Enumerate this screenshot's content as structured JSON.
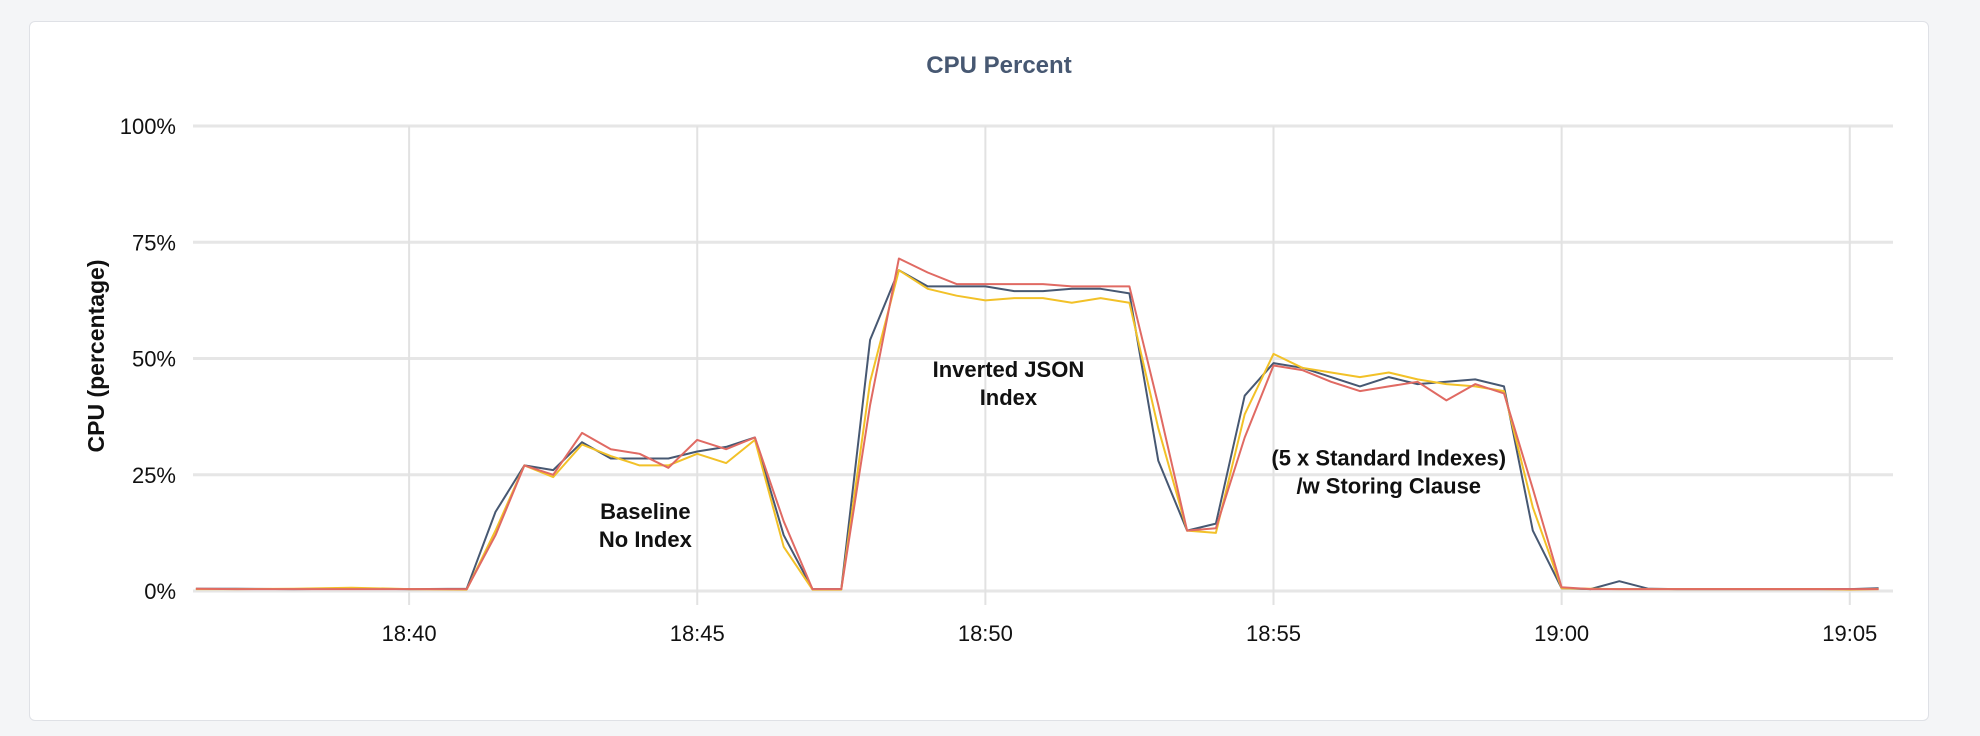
{
  "chart_data": {
    "type": "line",
    "title": "CPU Percent",
    "ylabel": "CPU (percentage)",
    "xlabel": "",
    "ylim": [
      0,
      100
    ],
    "yticks": [
      0,
      25,
      50,
      75,
      100
    ],
    "ytick_labels": [
      "0%",
      "25%",
      "50%",
      "75%",
      "100%"
    ],
    "xlim": [
      36.25,
      65.75
    ],
    "xticks": [
      40,
      45,
      50,
      55,
      60,
      65
    ],
    "xtick_labels": [
      "18:40",
      "18:45",
      "18:50",
      "18:55",
      "19:00",
      "19:05"
    ],
    "x_minutes_after": "18:00",
    "grid": true,
    "legend": "none",
    "series": [
      {
        "color": "#475872",
        "points": [
          [
            36.3,
            0.5
          ],
          [
            37.0,
            0.5
          ],
          [
            38.0,
            0.4
          ],
          [
            39.0,
            0.5
          ],
          [
            40.0,
            0.4
          ],
          [
            41.0,
            0.5
          ],
          [
            41.5,
            17
          ],
          [
            42.0,
            27
          ],
          [
            42.5,
            26
          ],
          [
            43.0,
            32
          ],
          [
            43.5,
            28.5
          ],
          [
            44.0,
            28.5
          ],
          [
            44.5,
            28.5
          ],
          [
            45.0,
            30
          ],
          [
            45.5,
            31
          ],
          [
            46.0,
            33
          ],
          [
            46.5,
            12
          ],
          [
            47.0,
            0.4
          ],
          [
            47.5,
            0.4
          ],
          [
            48.0,
            54
          ],
          [
            48.5,
            69
          ],
          [
            49.0,
            65.5
          ],
          [
            49.5,
            65.5
          ],
          [
            50.0,
            65.5
          ],
          [
            50.5,
            64.5
          ],
          [
            51.0,
            64.5
          ],
          [
            51.5,
            65
          ],
          [
            52.0,
            65
          ],
          [
            52.5,
            64
          ],
          [
            53.0,
            28
          ],
          [
            53.5,
            13
          ],
          [
            54.0,
            14.5
          ],
          [
            54.5,
            42
          ],
          [
            55.0,
            49
          ],
          [
            55.5,
            48
          ],
          [
            56.0,
            46
          ],
          [
            56.5,
            44
          ],
          [
            57.0,
            46
          ],
          [
            57.5,
            44.5
          ],
          [
            58.0,
            45
          ],
          [
            58.5,
            45.5
          ],
          [
            59.0,
            44
          ],
          [
            59.5,
            13
          ],
          [
            60.0,
            0.6
          ],
          [
            60.5,
            0.4
          ],
          [
            61.0,
            2.1
          ],
          [
            61.5,
            0.5
          ],
          [
            62.0,
            0.4
          ],
          [
            62.5,
            0.4
          ],
          [
            63.0,
            0.4
          ],
          [
            63.5,
            0.4
          ],
          [
            64.0,
            0.4
          ],
          [
            64.5,
            0.4
          ],
          [
            65.0,
            0.4
          ],
          [
            65.5,
            0.6
          ]
        ]
      },
      {
        "color": "#f2c128",
        "points": [
          [
            36.3,
            0.4
          ],
          [
            37.0,
            0.4
          ],
          [
            38.0,
            0.5
          ],
          [
            39.0,
            0.7
          ],
          [
            40.0,
            0.4
          ],
          [
            41.0,
            0.3
          ],
          [
            41.5,
            13
          ],
          [
            42.0,
            27
          ],
          [
            42.5,
            24.5
          ],
          [
            43.0,
            31.5
          ],
          [
            43.5,
            29
          ],
          [
            44.0,
            27
          ],
          [
            44.5,
            27
          ],
          [
            45.0,
            29.5
          ],
          [
            45.5,
            27.5
          ],
          [
            46.0,
            32.5
          ],
          [
            46.5,
            9.5
          ],
          [
            47.0,
            0.3
          ],
          [
            47.5,
            0.3
          ],
          [
            48.0,
            45
          ],
          [
            48.5,
            69
          ],
          [
            49.0,
            65
          ],
          [
            49.5,
            63.5
          ],
          [
            50.0,
            62.5
          ],
          [
            50.5,
            63
          ],
          [
            51.0,
            63
          ],
          [
            51.5,
            62
          ],
          [
            52.0,
            63
          ],
          [
            52.5,
            62
          ],
          [
            53.0,
            35
          ],
          [
            53.5,
            13
          ],
          [
            54.0,
            12.5
          ],
          [
            54.5,
            38
          ],
          [
            55.0,
            51
          ],
          [
            55.5,
            48
          ],
          [
            56.0,
            47
          ],
          [
            56.5,
            46
          ],
          [
            57.0,
            47
          ],
          [
            57.5,
            45.5
          ],
          [
            58.0,
            44.5
          ],
          [
            58.5,
            44
          ],
          [
            59.0,
            43
          ],
          [
            59.5,
            18
          ],
          [
            60.0,
            0.6
          ],
          [
            60.5,
            0.5
          ],
          [
            61.0,
            0.4
          ],
          [
            61.5,
            0.4
          ],
          [
            62.0,
            0.4
          ],
          [
            62.5,
            0.4
          ],
          [
            63.0,
            0.4
          ],
          [
            63.5,
            0.4
          ],
          [
            64.0,
            0.4
          ],
          [
            64.5,
            0.4
          ],
          [
            65.0,
            0.3
          ],
          [
            65.5,
            0.4
          ]
        ]
      },
      {
        "color": "#e06a63",
        "points": [
          [
            36.3,
            0.5
          ],
          [
            37.0,
            0.4
          ],
          [
            38.0,
            0.4
          ],
          [
            39.0,
            0.4
          ],
          [
            40.0,
            0.4
          ],
          [
            41.0,
            0.4
          ],
          [
            41.5,
            12
          ],
          [
            42.0,
            27
          ],
          [
            42.5,
            25
          ],
          [
            43.0,
            34
          ],
          [
            43.5,
            30.5
          ],
          [
            44.0,
            29.5
          ],
          [
            44.5,
            26.5
          ],
          [
            45.0,
            32.5
          ],
          [
            45.5,
            30.5
          ],
          [
            46.0,
            33
          ],
          [
            46.5,
            15
          ],
          [
            47.0,
            0.4
          ],
          [
            47.5,
            0.4
          ],
          [
            48.0,
            40
          ],
          [
            48.5,
            71.5
          ],
          [
            49.0,
            68.5
          ],
          [
            49.5,
            66
          ],
          [
            50.0,
            66
          ],
          [
            50.5,
            66
          ],
          [
            51.0,
            66
          ],
          [
            51.5,
            65.5
          ],
          [
            52.0,
            65.5
          ],
          [
            52.5,
            65.5
          ],
          [
            53.0,
            40
          ],
          [
            53.5,
            13
          ],
          [
            54.0,
            13.5
          ],
          [
            54.5,
            33
          ],
          [
            55.0,
            48.5
          ],
          [
            55.5,
            47.5
          ],
          [
            56.0,
            45
          ],
          [
            56.5,
            43
          ],
          [
            57.0,
            44
          ],
          [
            57.5,
            45
          ],
          [
            58.0,
            41
          ],
          [
            58.5,
            44.5
          ],
          [
            59.0,
            42.5
          ],
          [
            59.5,
            22
          ],
          [
            60.0,
            0.8
          ],
          [
            60.5,
            0.4
          ],
          [
            61.0,
            0.4
          ],
          [
            61.5,
            0.4
          ],
          [
            62.0,
            0.4
          ],
          [
            62.5,
            0.4
          ],
          [
            63.0,
            0.4
          ],
          [
            63.5,
            0.4
          ],
          [
            64.0,
            0.4
          ],
          [
            64.5,
            0.4
          ],
          [
            65.0,
            0.4
          ],
          [
            65.5,
            0.4
          ]
        ]
      }
    ],
    "annotations": [
      {
        "lines": [
          "Baseline",
          "No Index"
        ],
        "x": 44.1,
        "y": 15.5
      },
      {
        "lines": [
          "Inverted JSON",
          "Index"
        ],
        "x": 50.4,
        "y": 46
      },
      {
        "lines": [
          "(5 x Standard Indexes)",
          "/w Storing Clause"
        ],
        "x": 57.0,
        "y": 27
      }
    ]
  }
}
